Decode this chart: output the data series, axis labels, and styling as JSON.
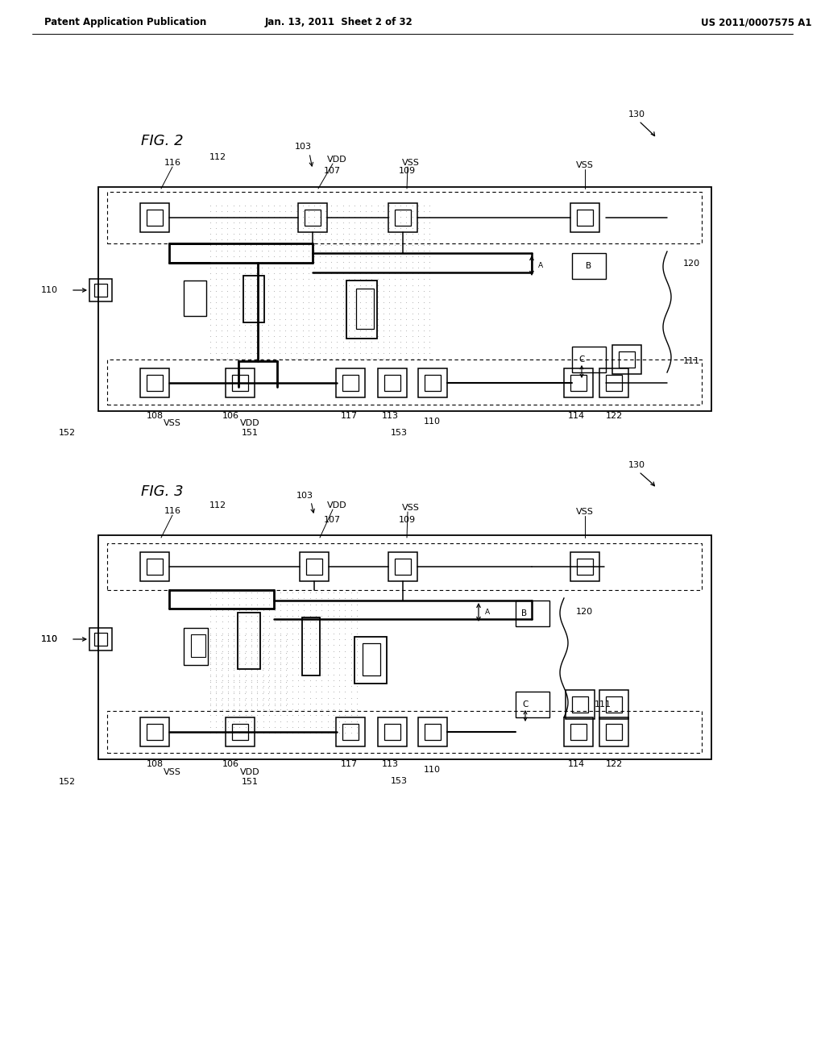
{
  "header_left": "Patent Application Publication",
  "header_center": "Jan. 13, 2011  Sheet 2 of 32",
  "header_right": "US 2011/0007575 A1",
  "fig2_label": "FIG. 2",
  "fig3_label": "FIG. 3",
  "background_color": "#ffffff",
  "line_color": "#000000",
  "header_fontsize": 8.5,
  "fig_label_fontsize": 13,
  "annotation_fontsize": 8.0
}
